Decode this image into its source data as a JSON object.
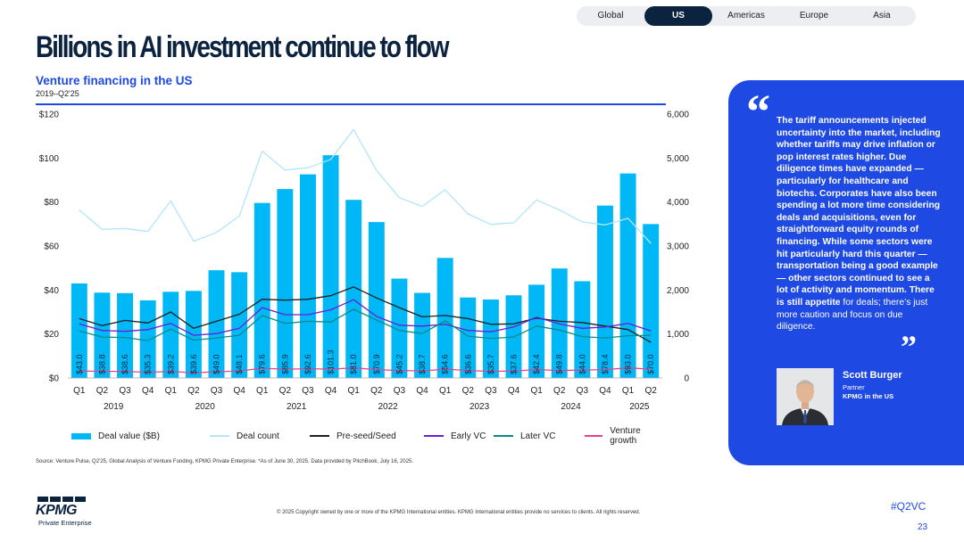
{
  "tabs": [
    {
      "label": "Global",
      "active": false
    },
    {
      "label": "US",
      "active": true
    },
    {
      "label": "Americas",
      "active": false
    },
    {
      "label": "Europe",
      "active": false
    },
    {
      "label": "Asia",
      "active": false
    }
  ],
  "header": {
    "title": "Billions in AI investment continue to flow",
    "subtitle": "Venture financing in the US",
    "period": "2019–Q2'25"
  },
  "chart_data": {
    "type": "bar",
    "title": "Venture financing in the US",
    "subtitle": "2019–Q2'25",
    "categories": [
      "Q1",
      "Q2",
      "Q3",
      "Q4",
      "Q1",
      "Q2",
      "Q3",
      "Q4",
      "Q1",
      "Q2",
      "Q3",
      "Q4",
      "Q1",
      "Q2",
      "Q3",
      "Q4",
      "Q1",
      "Q2",
      "Q3",
      "Q4",
      "Q1",
      "Q2",
      "Q3",
      "Q4",
      "Q1",
      "Q2"
    ],
    "years": [
      {
        "label": "2019",
        "start": 0,
        "end": 3
      },
      {
        "label": "2020",
        "start": 4,
        "end": 7
      },
      {
        "label": "2021",
        "start": 8,
        "end": 11
      },
      {
        "label": "2022",
        "start": 12,
        "end": 15
      },
      {
        "label": "2023",
        "start": 16,
        "end": 19
      },
      {
        "label": "2024",
        "start": 20,
        "end": 23
      },
      {
        "label": "2025",
        "start": 24,
        "end": 25
      }
    ],
    "y_left": {
      "ticks": [
        "$0",
        "$20",
        "$40",
        "$60",
        "$80",
        "$100",
        "$120"
      ],
      "ylim": [
        0,
        120
      ]
    },
    "y_right": {
      "ticks": [
        "0",
        "1,000",
        "2,000",
        "3,000",
        "4,000",
        "5,000",
        "6,000"
      ],
      "ylim": [
        0,
        6000
      ]
    },
    "bars": {
      "name": "Deal value ($B)",
      "color": "#00b8f5",
      "values": [
        43.0,
        38.8,
        38.6,
        35.3,
        39.2,
        39.6,
        49.0,
        48.1,
        79.6,
        85.9,
        92.6,
        101.3,
        81.0,
        70.9,
        45.2,
        38.7,
        54.6,
        36.6,
        35.7,
        37.6,
        42.4,
        49.8,
        44.0,
        78.4,
        93.0,
        70.0
      ],
      "labels": [
        "$43.0",
        "$38.8",
        "$38.6",
        "$35.3",
        "$39.2",
        "$39.6",
        "$49.0",
        "$48.1",
        "$79.6",
        "$85.9",
        "$92.6",
        "$101.3",
        "$81.0",
        "$70.9",
        "$45.2",
        "$38.7",
        "$54.6",
        "$36.6",
        "$35.7",
        "$37.6",
        "$42.4",
        "$49.8",
        "$44.0",
        "$78.4",
        "$93.0",
        "$70.0"
      ]
    },
    "series": [
      {
        "name": "Deal count",
        "axis": "right",
        "color": "#b3e5fb",
        "width": 1.3,
        "values": [
          3820,
          3380,
          3400,
          3330,
          4030,
          3110,
          3310,
          3680,
          5160,
          4730,
          4780,
          4970,
          5650,
          4720,
          4100,
          3900,
          4280,
          3730,
          3490,
          3530,
          4050,
          3820,
          3550,
          3480,
          3630,
          3060
        ]
      },
      {
        "name": "Pre-seed/Seed",
        "axis": "right",
        "color": "#1e1e1e",
        "width": 1.3,
        "values": [
          1350,
          1190,
          1310,
          1250,
          1500,
          1130,
          1290,
          1450,
          1790,
          1770,
          1790,
          1870,
          2070,
          1820,
          1600,
          1390,
          1420,
          1350,
          1220,
          1230,
          1360,
          1290,
          1260,
          1180,
          1100,
          810
        ]
      },
      {
        "name": "Early VC",
        "axis": "right",
        "color": "#6a1fd1",
        "width": 1.3,
        "values": [
          1230,
          1080,
          1060,
          1100,
          1240,
          970,
          1010,
          1130,
          1600,
          1440,
          1440,
          1550,
          1780,
          1400,
          1200,
          1180,
          1220,
          1080,
          1050,
          1160,
          1380,
          1230,
          1130,
          1160,
          1240,
          1070
        ]
      },
      {
        "name": "Later VC",
        "axis": "right",
        "color": "#0a8a8a",
        "width": 1.3,
        "values": [
          1070,
          930,
          920,
          850,
          1110,
          860,
          910,
          970,
          1420,
          1240,
          1290,
          1270,
          1560,
          1320,
          1080,
          1010,
          1300,
          950,
          900,
          930,
          1180,
          1090,
          940,
          910,
          960,
          970
        ]
      },
      {
        "name": "Venture growth",
        "axis": "right",
        "color": "#e8418b",
        "width": 1.3,
        "values": [
          160,
          150,
          150,
          130,
          150,
          120,
          140,
          160,
          220,
          200,
          210,
          200,
          230,
          190,
          170,
          160,
          200,
          170,
          150,
          160,
          190,
          170,
          180,
          190,
          230,
          200
        ]
      }
    ],
    "legend_position": "bottom",
    "grid": false
  },
  "legend": [
    {
      "label": "Deal value ($B)",
      "kind": "bar",
      "color": "#00b8f5"
    },
    {
      "label": "Deal count",
      "kind": "line",
      "color": "#b3e5fb"
    },
    {
      "label": "Pre-seed/Seed",
      "kind": "line",
      "color": "#1e1e1e"
    },
    {
      "label": "Early VC",
      "kind": "line",
      "color": "#6a1fd1"
    },
    {
      "label": "Later VC",
      "kind": "line",
      "color": "#0a8a8a"
    },
    {
      "label": "Venture growth",
      "kind": "line",
      "color": "#e8418b"
    }
  ],
  "source": "Source: Venture Pulse, Q2'25, Global Analysis of Venture Funding, KPMG Private Enterprise. *As of June 30, 2025. Data provided by PitchBook, July 16, 2025.",
  "quote": {
    "open_mark": "“",
    "close_mark": "”",
    "text": "The tariff announcements injected uncertainty into the market, including whether tariffs may drive inflation or pop interest rates higher. Due diligence times have expanded — particularly for healthcare and biotechs. Corporates have also been spending a lot more time considering deals and acquisitions, even for straightforward equity rounds of financing. While some sectors were hit particularly hard this quarter — transportation being a good example — other sectors continued to see a lot of activity and momentum. There is still appetite",
    "tail": "for deals; there’s just more caution and focus on due diligence.",
    "name": "Scott Burger",
    "role": "Partner",
    "org": "KPMG in the US"
  },
  "footer": {
    "logo": "KPMG",
    "logo_sub": "Private Enterprise",
    "copyright": "© 2025 Copyright owned by one or more of the KPMG International entities. KPMG International entities provide no services to clients. All rights reserved.",
    "hashtag": "#Q2VC",
    "page": "23"
  },
  "colors": {
    "accent": "#1e49e2",
    "navy": "#0c233f"
  }
}
